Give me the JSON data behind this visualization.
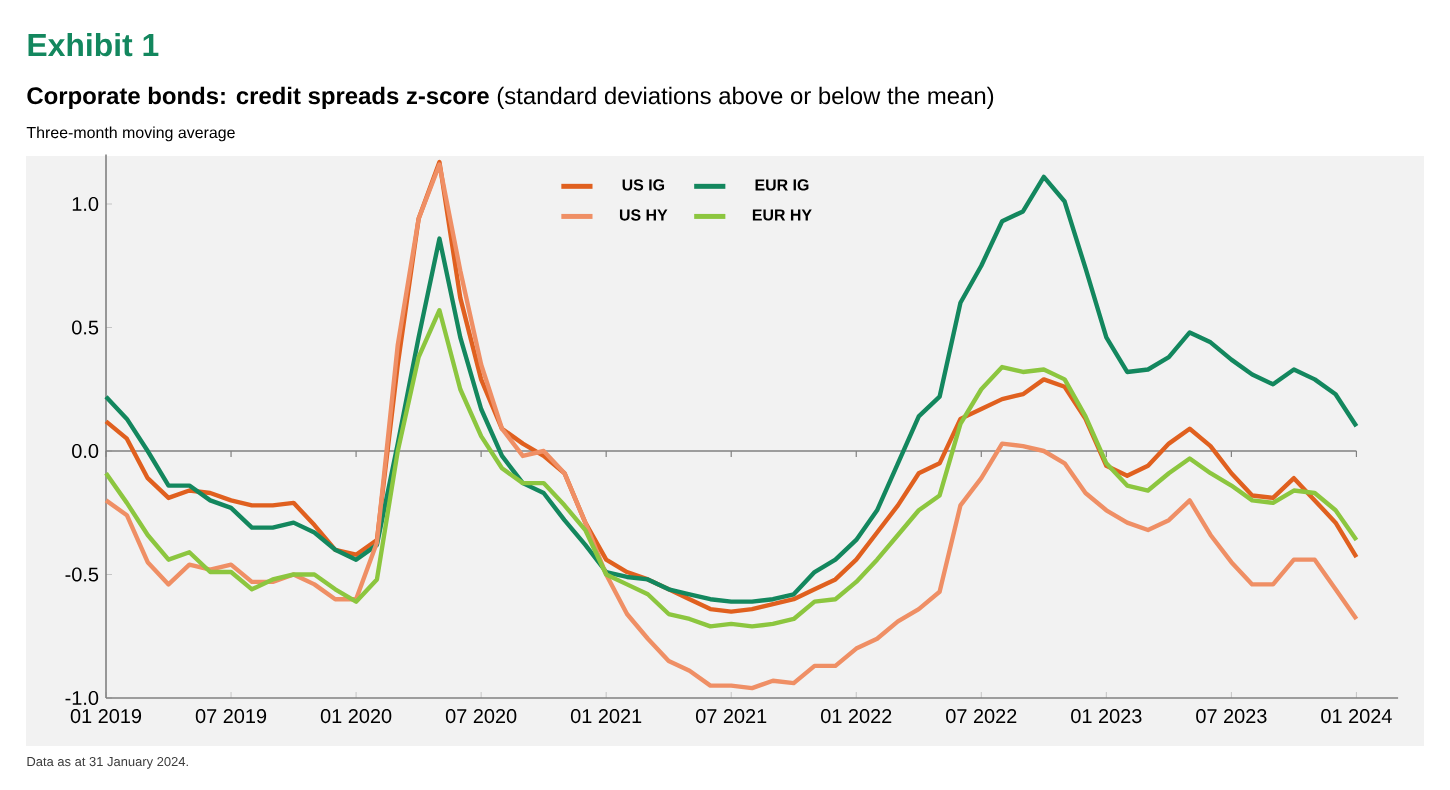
{
  "chart_data": {
    "type": "line",
    "title": "**Corporate bonds: credit spreads z-score** (standard deviations above or below the mean)",
    "subtitle": "Three-month moving average",
    "annotations": [
      "Exhibit 1",
      "Data as at 31 January 2024."
    ],
    "x": [
      "2019-01",
      "2019-02",
      "2019-03",
      "2019-04",
      "2019-05",
      "2019-06",
      "2019-07",
      "2019-08",
      "2019-09",
      "2019-10",
      "2019-11",
      "2019-12",
      "2020-01",
      "2020-02",
      "2020-03",
      "2020-04",
      "2020-05",
      "2020-06",
      "2020-07",
      "2020-08",
      "2020-09",
      "2020-10",
      "2020-11",
      "2020-12",
      "2021-01",
      "2021-02",
      "2021-03",
      "2021-04",
      "2021-05",
      "2021-06",
      "2021-07",
      "2021-08",
      "2021-09",
      "2021-10",
      "2021-11",
      "2021-12",
      "2022-01",
      "2022-02",
      "2022-03",
      "2022-04",
      "2022-05",
      "2022-06",
      "2022-07",
      "2022-08",
      "2022-09",
      "2022-10",
      "2022-11",
      "2022-12",
      "2023-01",
      "2023-02",
      "2023-03",
      "2023-04",
      "2023-05",
      "2023-06",
      "2023-07",
      "2023-08",
      "2023-09",
      "2023-10",
      "2023-11",
      "2023-12",
      "2024-01"
    ],
    "series": [
      {
        "name": "US IG",
        "color": "#e0601f",
        "values": [
          0.12,
          0.05,
          -0.11,
          -0.19,
          -0.16,
          -0.17,
          -0.2,
          -0.22,
          -0.22,
          -0.21,
          -0.3,
          -0.4,
          -0.42,
          -0.36,
          0.35,
          0.94,
          1.17,
          0.62,
          0.29,
          0.09,
          0.03,
          -0.02,
          -0.09,
          -0.29,
          -0.44,
          -0.49,
          -0.52,
          -0.56,
          -0.6,
          -0.64,
          -0.65,
          -0.64,
          -0.62,
          -0.6,
          -0.56,
          -0.52,
          -0.44,
          -0.33,
          -0.22,
          -0.09,
          -0.05,
          0.13,
          0.17,
          0.21,
          0.23,
          0.29,
          0.26,
          0.13,
          -0.06,
          -0.1,
          -0.06,
          0.03,
          0.09,
          0.02,
          -0.09,
          -0.18,
          -0.19,
          -0.11,
          -0.2,
          -0.29,
          -0.43
        ]
      },
      {
        "name": "EUR IG",
        "color": "#13875e",
        "values": [
          0.22,
          0.13,
          0.0,
          -0.14,
          -0.14,
          -0.2,
          -0.23,
          -0.31,
          -0.31,
          -0.29,
          -0.33,
          -0.4,
          -0.44,
          -0.38,
          0.03,
          0.46,
          0.86,
          0.46,
          0.17,
          -0.02,
          -0.13,
          -0.17,
          -0.28,
          -0.38,
          -0.49,
          -0.51,
          -0.52,
          -0.56,
          -0.58,
          -0.6,
          -0.61,
          -0.61,
          -0.6,
          -0.58,
          -0.49,
          -0.44,
          -0.36,
          -0.24,
          -0.05,
          0.14,
          0.22,
          0.6,
          0.75,
          0.93,
          0.97,
          1.11,
          1.01,
          0.74,
          0.46,
          0.32,
          0.33,
          0.38,
          0.48,
          0.44,
          0.37,
          0.31,
          0.27,
          0.33,
          0.29,
          0.23,
          0.1
        ]
      },
      {
        "name": "US HY",
        "color": "#ef8f65",
        "values": [
          -0.2,
          -0.26,
          -0.45,
          -0.54,
          -0.46,
          -0.48,
          -0.46,
          -0.53,
          -0.53,
          -0.5,
          -0.54,
          -0.6,
          -0.6,
          -0.37,
          0.43,
          0.94,
          1.16,
          0.73,
          0.35,
          0.09,
          -0.02,
          0.0,
          -0.09,
          -0.29,
          -0.5,
          -0.66,
          -0.76,
          -0.85,
          -0.89,
          -0.95,
          -0.95,
          -0.96,
          -0.93,
          -0.94,
          -0.87,
          -0.87,
          -0.8,
          -0.76,
          -0.69,
          -0.64,
          -0.57,
          -0.22,
          -0.11,
          0.03,
          0.02,
          0.0,
          -0.05,
          -0.17,
          -0.24,
          -0.29,
          -0.32,
          -0.28,
          -0.2,
          -0.34,
          -0.45,
          -0.54,
          -0.54,
          -0.44,
          -0.44,
          -0.56,
          -0.68
        ]
      },
      {
        "name": "EUR HY",
        "color": "#8cc63f",
        "values": [
          -0.09,
          -0.21,
          -0.34,
          -0.44,
          -0.41,
          -0.49,
          -0.49,
          -0.56,
          -0.52,
          -0.5,
          -0.5,
          -0.56,
          -0.61,
          -0.52,
          0.0,
          0.38,
          0.57,
          0.25,
          0.06,
          -0.07,
          -0.13,
          -0.13,
          -0.22,
          -0.32,
          -0.5,
          -0.54,
          -0.58,
          -0.66,
          -0.68,
          -0.71,
          -0.7,
          -0.71,
          -0.7,
          -0.68,
          -0.61,
          -0.6,
          -0.53,
          -0.44,
          -0.34,
          -0.24,
          -0.18,
          0.11,
          0.25,
          0.34,
          0.32,
          0.33,
          0.29,
          0.14,
          -0.05,
          -0.14,
          -0.16,
          -0.09,
          -0.03,
          -0.09,
          -0.14,
          -0.2,
          -0.21,
          -0.16,
          -0.17,
          -0.24,
          -0.36
        ]
      }
    ],
    "xlim": [
      "2019-01",
      "2024-03"
    ],
    "xticks": [
      {
        "value": "2019-01",
        "label": "01 2019"
      },
      {
        "value": "2019-07",
        "label": "07 2019"
      },
      {
        "value": "2020-01",
        "label": "01 2020"
      },
      {
        "value": "2020-07",
        "label": "07 2020"
      },
      {
        "value": "2021-01",
        "label": "01 2021"
      },
      {
        "value": "2021-07",
        "label": "07 2021"
      },
      {
        "value": "2022-01",
        "label": "01 2022"
      },
      {
        "value": "2022-07",
        "label": "07 2022"
      },
      {
        "value": "2023-01",
        "label": "01 2023"
      },
      {
        "value": "2023-07",
        "label": "07 2023"
      },
      {
        "value": "2024-01",
        "label": "01 2024"
      }
    ],
    "ylim": [
      -1,
      1.2
    ],
    "yticks": [
      {
        "value": -1,
        "label": "-1.0"
      },
      {
        "value": -0.5,
        "label": "-0.5"
      },
      {
        "value": 0,
        "label": "0.0"
      },
      {
        "value": 0.5,
        "label": "0.5"
      },
      {
        "value": 1,
        "label": "1.0"
      }
    ],
    "ref_lines": [
      {
        "axis": "y",
        "value": 0,
        "color": "#808080"
      }
    ],
    "legend": "top",
    "grid": false,
    "marker": "none",
    "line_style": "solid"
  }
}
